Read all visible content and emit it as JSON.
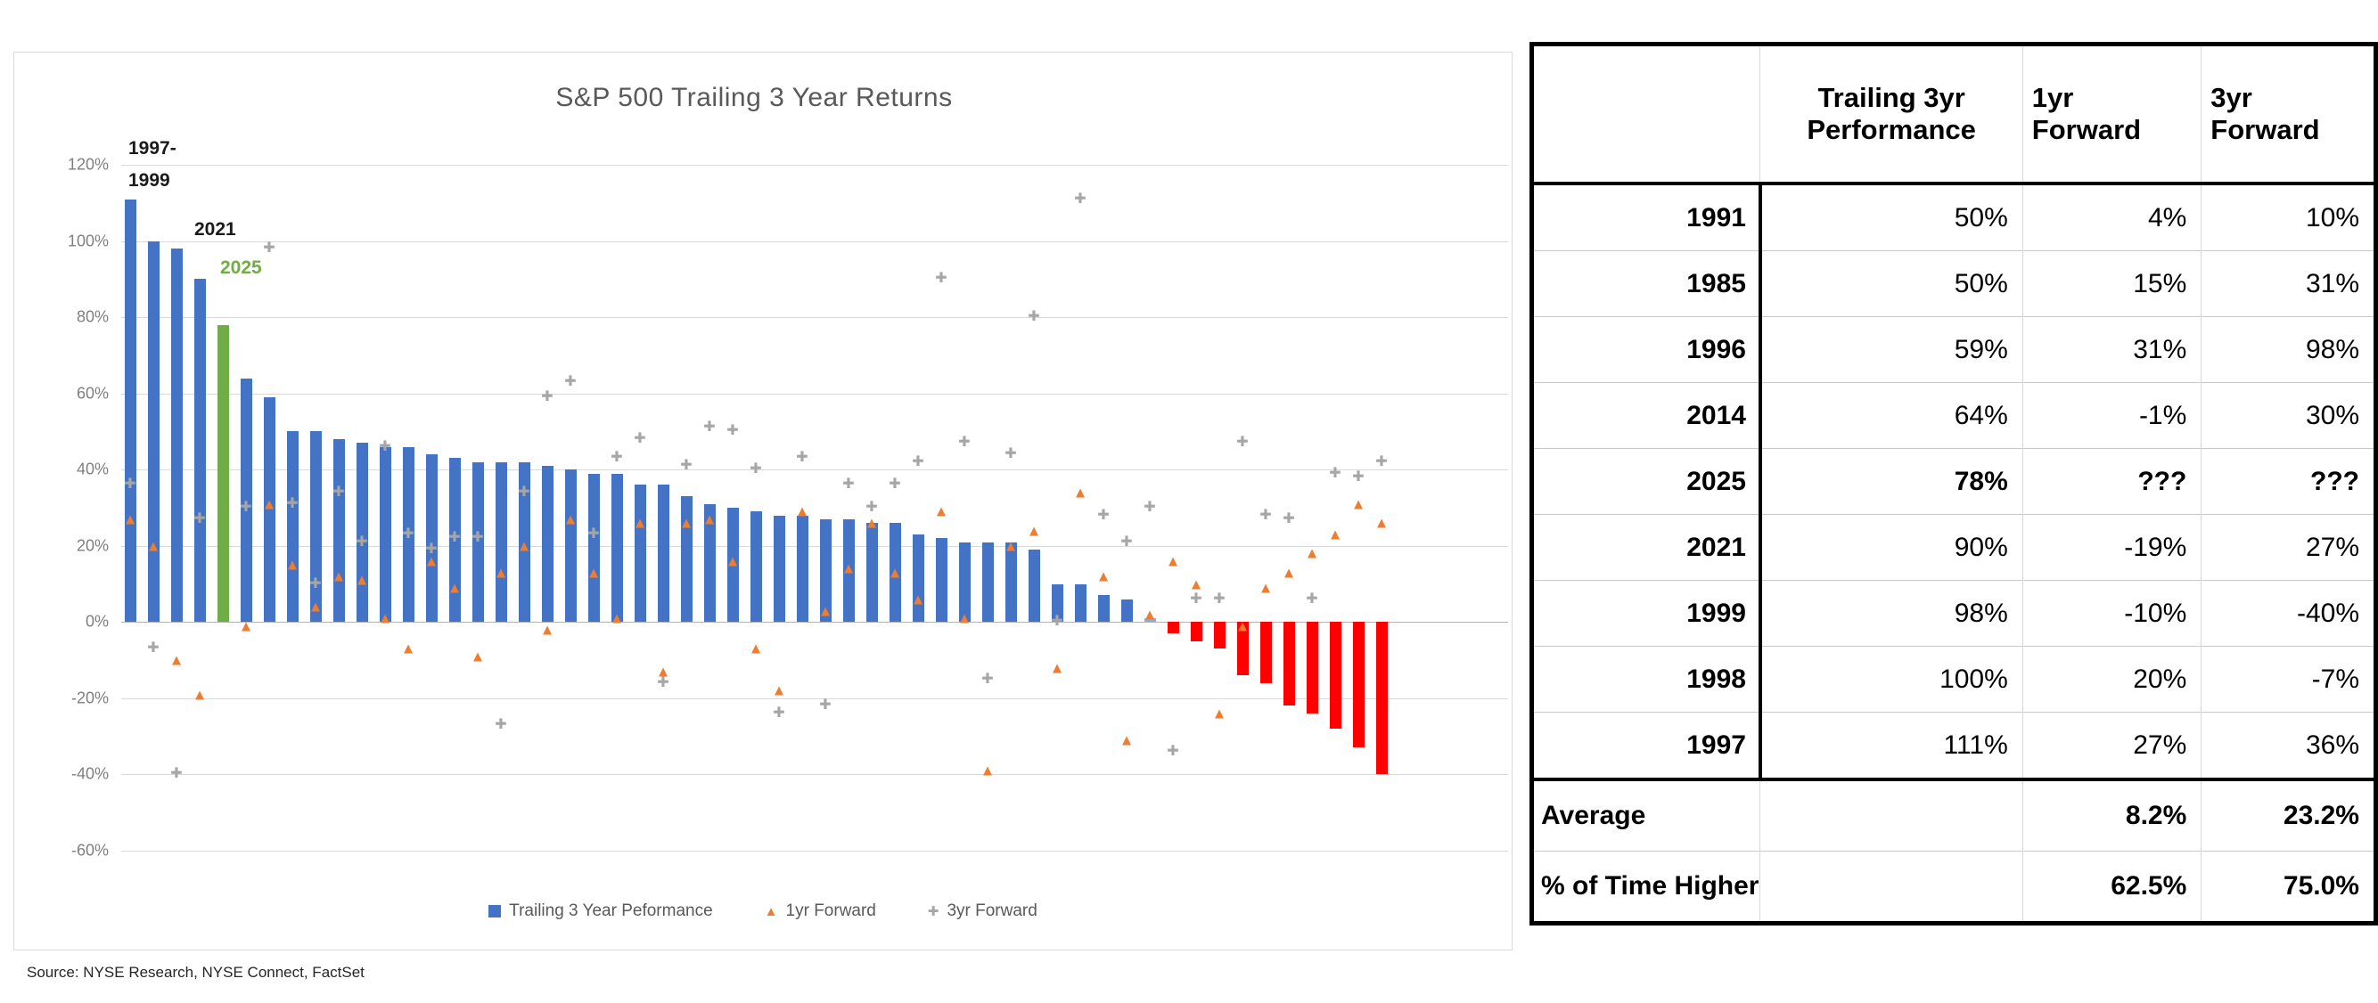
{
  "source_note": "Source: NYSE Research, NYSE Connect, FactSet",
  "colors": {
    "bar_blue": "#4472c4",
    "bar_green": "#70ad47",
    "bar_lightblue": "#8faadc",
    "bar_red": "#fe0000",
    "marker_orange": "#ed7d31",
    "marker_gray": "#a6a6a6",
    "title_gray": "#595959"
  },
  "chart_data": {
    "type": "bar",
    "title": "S&P 500 Trailing 3 Year Returns",
    "ylim": [
      -60,
      120
    ],
    "ytick_step": 20,
    "grid": true,
    "legend_position": "bottom",
    "y_ticks": [
      "120%",
      "100%",
      "80%",
      "60%",
      "40%",
      "20%",
      "0%",
      "-20%",
      "-40%",
      "-60%"
    ],
    "annotations": [
      {
        "text": "1997-",
        "x": 8,
        "y": -30,
        "color": "#1a1a1a"
      },
      {
        "text": "1999",
        "x": 8,
        "y": 6,
        "color": "#1a1a1a"
      },
      {
        "text": "2021",
        "x": 82,
        "y": 61,
        "color": "#1a1a1a"
      },
      {
        "text": "2025",
        "x": 111,
        "y": 104,
        "color": "#70ad47"
      }
    ],
    "series": [
      {
        "name": "Trailing 3 Year Peformance",
        "type": "bar",
        "values": [
          111,
          100,
          98,
          90,
          78,
          64,
          59,
          50,
          50,
          48,
          47,
          46,
          46,
          44,
          43,
          42,
          42,
          42,
          41,
          40,
          39,
          39,
          36,
          36,
          33,
          31,
          30,
          29,
          28,
          28,
          27,
          27,
          26,
          26,
          23,
          22,
          21,
          21,
          21,
          19,
          10,
          10,
          7,
          6,
          1,
          -3,
          -5,
          -7,
          -14,
          -16,
          -22,
          -24,
          -28,
          -33,
          -40
        ]
      },
      {
        "name": "1yr Forward",
        "type": "scatter",
        "marker": "triangle",
        "values": [
          27,
          20,
          -10,
          -19,
          null,
          -1,
          31,
          15,
          4,
          12,
          11,
          1,
          -7,
          16,
          9,
          -9,
          13,
          20,
          -2,
          27,
          13,
          1,
          26,
          -13,
          26,
          27,
          16,
          -7,
          -18,
          29,
          3,
          14,
          26,
          13,
          6,
          29,
          1,
          -39,
          20,
          24,
          -12,
          34,
          12,
          -31,
          2,
          16,
          10,
          -24,
          -1,
          9,
          13,
          18,
          23,
          31,
          26
        ]
      },
      {
        "name": "3yr Forward",
        "type": "scatter",
        "marker": "plus",
        "values": [
          36,
          -7,
          -40,
          27,
          null,
          30,
          98,
          31,
          10,
          34,
          21,
          46,
          23,
          19,
          22,
          22,
          -27,
          34,
          59,
          63,
          23,
          43,
          48,
          -16,
          41,
          51,
          50,
          40,
          -24,
          43,
          -22,
          36,
          30,
          36,
          42,
          90,
          47,
          -15,
          44,
          80,
          0,
          111,
          28,
          21,
          30,
          -34,
          6,
          6,
          47,
          28,
          27,
          6,
          39,
          38,
          42
        ]
      }
    ],
    "bar_colors_rule": {
      "default": "#4472c4",
      "green_index": 4,
      "lightblue_index": 44,
      "red_from_index": 45
    }
  },
  "table": {
    "headers": [
      {
        "lines": [
          "",
          ""
        ]
      },
      {
        "lines": [
          "Trailing 3yr",
          "Performance"
        ]
      },
      {
        "lines": [
          "1yr",
          "Forward"
        ]
      },
      {
        "lines": [
          "3yr",
          "Forward"
        ]
      }
    ],
    "rows": [
      {
        "year": "1991",
        "trailing": "50%",
        "fwd1": "4%",
        "fwd3": "10%",
        "bold": false
      },
      {
        "year": "1985",
        "trailing": "50%",
        "fwd1": "15%",
        "fwd3": "31%",
        "bold": false
      },
      {
        "year": "1996",
        "trailing": "59%",
        "fwd1": "31%",
        "fwd3": "98%",
        "bold": false
      },
      {
        "year": "2014",
        "trailing": "64%",
        "fwd1": "-1%",
        "fwd3": "30%",
        "bold": false
      },
      {
        "year": "2025",
        "trailing": "78%",
        "fwd1": "???",
        "fwd3": "???",
        "bold": true
      },
      {
        "year": "2021",
        "trailing": "90%",
        "fwd1": "-19%",
        "fwd3": "27%",
        "bold": false
      },
      {
        "year": "1999",
        "trailing": "98%",
        "fwd1": "-10%",
        "fwd3": "-40%",
        "bold": false
      },
      {
        "year": "1998",
        "trailing": "100%",
        "fwd1": "20%",
        "fwd3": "-7%",
        "bold": false
      },
      {
        "year": "1997",
        "trailing": "111%",
        "fwd1": "27%",
        "fwd3": "36%",
        "bold": false
      }
    ],
    "footer": [
      {
        "label": "Average",
        "trailing": "",
        "fwd1": "8.2%",
        "fwd3": "23.2%"
      },
      {
        "label": "% of Time Higher",
        "trailing": "",
        "fwd1": "62.5%",
        "fwd3": "75.0%"
      }
    ]
  }
}
